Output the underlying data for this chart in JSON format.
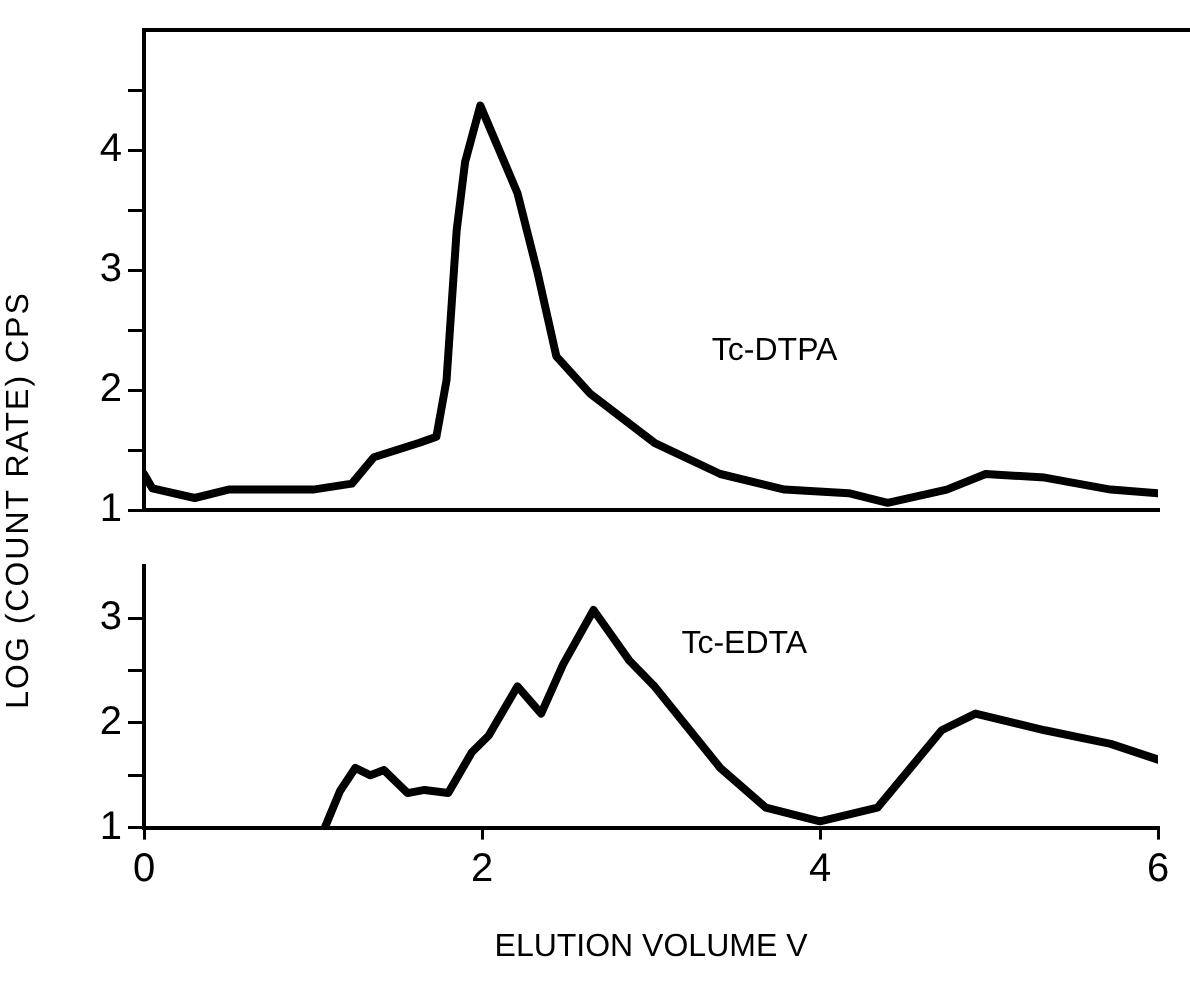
{
  "chart_data": [
    {
      "type": "line",
      "ylabel": "LOG (COUNT RATE) CPS",
      "xlim": [
        0,
        6
      ],
      "xticks": [
        0,
        2,
        4,
        6
      ],
      "ylim": [
        1,
        5
      ],
      "yticks": [
        1,
        {
          "value": 1.5,
          "label": null
        },
        2,
        {
          "value": 2.5,
          "label": null
        },
        3,
        {
          "value": 3.5,
          "label": null
        },
        4,
        {
          "value": 4.5,
          "label": null
        }
      ],
      "tick_labels": "y",
      "grid": false,
      "marker": "none",
      "line_style": "solid",
      "series": [
        {
          "name": "Tc-DTPA",
          "color": "#000000",
          "x": [
            0,
            0.05,
            0.3,
            0.5,
            1.0,
            1.23,
            1.36,
            1.63,
            1.73,
            1.79,
            1.85,
            1.9,
            1.99,
            2.21,
            2.33,
            2.44,
            2.64,
            3.02,
            3.41,
            3.79,
            4.17,
            4.4,
            4.75,
            4.98,
            5.33,
            5.72,
            6
          ],
          "values": [
            1.3,
            1.18,
            1.1,
            1.17,
            1.17,
            1.22,
            1.44,
            1.56,
            1.61,
            2.08,
            3.33,
            3.9,
            4.37,
            3.64,
            2.97,
            2.28,
            1.97,
            1.56,
            1.3,
            1.17,
            1.14,
            1.06,
            1.17,
            1.3,
            1.27,
            1.17,
            1.14
          ]
        }
      ]
    },
    {
      "type": "line",
      "xlabel": "ELUTION VOLUME V",
      "xlim": [
        0,
        6
      ],
      "xticks": [
        0,
        2,
        4,
        6
      ],
      "ylim": [
        1,
        3.5
      ],
      "yticks": [
        1,
        {
          "value": 1.5,
          "label": null
        },
        2,
        {
          "value": 2.5,
          "label": null
        },
        3
      ],
      "grid": false,
      "marker": "none",
      "line_style": "solid",
      "series": [
        {
          "name": "Tc-EDTA",
          "color": "#000000",
          "x": [
            1.07,
            1.16,
            1.25,
            1.34,
            1.42,
            1.56,
            1.66,
            1.8,
            1.94,
            2.04,
            2.21,
            2.35,
            2.48,
            2.66,
            2.87,
            3.02,
            3.41,
            3.68,
            4.0,
            4.34,
            4.72,
            4.92,
            5.33,
            5.72,
            6
          ],
          "values": [
            1.0,
            1.35,
            1.57,
            1.5,
            1.55,
            1.33,
            1.36,
            1.33,
            1.72,
            1.88,
            2.35,
            2.09,
            2.56,
            3.08,
            2.6,
            2.35,
            1.57,
            1.19,
            1.06,
            1.19,
            1.93,
            2.09,
            1.93,
            1.8,
            1.65
          ]
        }
      ]
    }
  ]
}
